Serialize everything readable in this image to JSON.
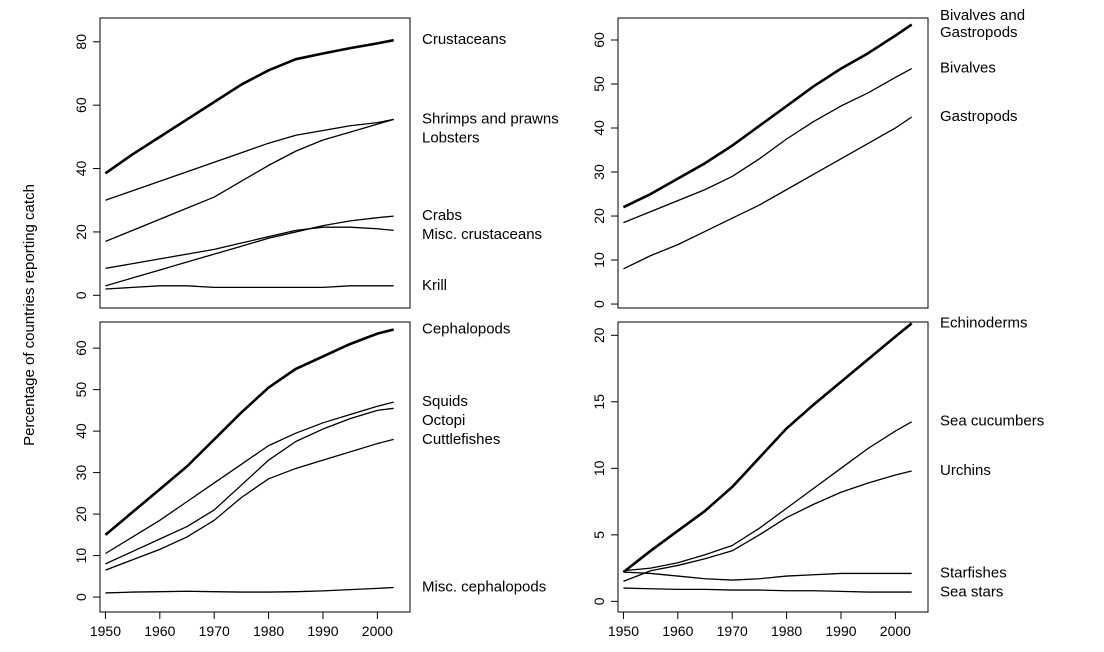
{
  "chart_data": [
    {
      "type": "line",
      "ylabel": "Percentage of countries reporting catch",
      "x": [
        1950,
        1955,
        1960,
        1965,
        1970,
        1975,
        1980,
        1985,
        1990,
        1995,
        2000,
        2003
      ],
      "xlim": [
        1949,
        2006
      ],
      "ylim": [
        -4,
        87.5
      ],
      "yticks": [
        0,
        20,
        40,
        60,
        80
      ],
      "series": [
        {
          "name": "Crustaceans",
          "color": "#000000",
          "line_width": 2.6,
          "values": [
            38.5,
            44.5,
            50,
            55.5,
            61,
            66.5,
            71,
            74.5,
            76.3,
            78,
            79.5,
            80.5
          ]
        },
        {
          "name": "Shrimps and prawns",
          "color": "#000000",
          "line_width": 1.3,
          "values": [
            30,
            33,
            36,
            39,
            42,
            45,
            48,
            50.5,
            52,
            53.5,
            54.5,
            55.5
          ]
        },
        {
          "name": "Lobsters",
          "color": "#000000",
          "line_width": 1.3,
          "values": [
            17,
            20.5,
            24,
            27.5,
            31,
            36,
            41,
            45.5,
            49,
            51.5,
            54,
            55.5
          ]
        },
        {
          "name": "Crabs",
          "color": "#000000",
          "line_width": 1.3,
          "values": [
            3,
            5.5,
            8,
            10.5,
            13,
            15.5,
            18,
            20,
            22,
            23.5,
            24.5,
            25
          ]
        },
        {
          "name": "Misc. crustaceans",
          "color": "#000000",
          "line_width": 1.3,
          "values": [
            8.5,
            10,
            11.5,
            13,
            14.5,
            16.5,
            18.5,
            20.5,
            21.5,
            21.5,
            21,
            20.5
          ]
        },
        {
          "name": "Krill",
          "color": "#000000",
          "line_width": 1.3,
          "values": [
            2,
            2.5,
            3,
            3,
            2.5,
            2.5,
            2.5,
            2.5,
            2.5,
            3,
            3,
            3
          ]
        }
      ]
    },
    {
      "type": "line",
      "x": [
        1950,
        1955,
        1960,
        1965,
        1970,
        1975,
        1980,
        1985,
        1990,
        1995,
        2000,
        2003
      ],
      "xlim": [
        1949,
        2006
      ],
      "ylim": [
        -0.9,
        65
      ],
      "yticks": [
        0,
        10,
        20,
        30,
        40,
        50,
        60
      ],
      "series": [
        {
          "name": "Bivalves and\nGastropods",
          "color": "#000000",
          "line_width": 2.6,
          "values": [
            22,
            25,
            28.5,
            32,
            36,
            40.5,
            45,
            49.5,
            53.5,
            57,
            61,
            63.5
          ]
        },
        {
          "name": "Bivalves",
          "color": "#000000",
          "line_width": 1.3,
          "values": [
            18.5,
            21,
            23.5,
            26,
            29,
            33,
            37.5,
            41.5,
            45,
            48,
            51.5,
            53.5
          ]
        },
        {
          "name": "Gastropods",
          "color": "#000000",
          "line_width": 1.3,
          "values": [
            8,
            11,
            13.5,
            16.5,
            19.5,
            22.5,
            26,
            29.5,
            33,
            36.5,
            40,
            42.5
          ]
        }
      ]
    },
    {
      "type": "line",
      "x": [
        1950,
        1955,
        1960,
        1965,
        1970,
        1975,
        1980,
        1985,
        1990,
        1995,
        2000,
        2003
      ],
      "xlim": [
        1949,
        2006
      ],
      "ylim": [
        -3.6,
        66.3
      ],
      "yticks": [
        0,
        10,
        20,
        30,
        40,
        50,
        60
      ],
      "xticks": [
        1950,
        1960,
        1970,
        1980,
        1990,
        2000
      ],
      "series": [
        {
          "name": "Cephalopods",
          "color": "#000000",
          "line_width": 2.6,
          "values": [
            15,
            20.5,
            26,
            31.5,
            38,
            44.5,
            50.5,
            55,
            58,
            61,
            63.5,
            64.5
          ]
        },
        {
          "name": "Squids",
          "color": "#000000",
          "line_width": 1.3,
          "values": [
            10.5,
            14.5,
            18.5,
            23,
            27.5,
            32,
            36.5,
            39.5,
            42,
            44,
            46,
            47
          ]
        },
        {
          "name": "Octopi",
          "color": "#000000",
          "line_width": 1.3,
          "values": [
            8,
            11,
            14,
            17,
            21,
            27,
            33,
            37.5,
            40.5,
            43,
            45,
            45.5
          ]
        },
        {
          "name": "Cuttlefishes",
          "color": "#000000",
          "line_width": 1.3,
          "values": [
            6.5,
            9,
            11.5,
            14.5,
            18.5,
            24,
            28.5,
            31,
            33,
            35,
            37,
            38
          ]
        },
        {
          "name": "Misc. cephalopods",
          "color": "#000000",
          "line_width": 1.3,
          "values": [
            1,
            1.2,
            1.3,
            1.4,
            1.3,
            1.2,
            1.2,
            1.3,
            1.5,
            1.8,
            2.1,
            2.3
          ]
        }
      ]
    },
    {
      "type": "line",
      "x": [
        1950,
        1955,
        1960,
        1965,
        1970,
        1975,
        1980,
        1985,
        1990,
        1995,
        2000,
        2003
      ],
      "xlim": [
        1949,
        2006
      ],
      "ylim": [
        -0.8,
        21
      ],
      "yticks": [
        0,
        5,
        10,
        15,
        20
      ],
      "xticks": [
        1950,
        1960,
        1970,
        1980,
        1990,
        2000
      ],
      "series": [
        {
          "name": "Echinoderms",
          "color": "#000000",
          "line_width": 2.6,
          "values": [
            2.2,
            3.8,
            5.3,
            6.8,
            8.6,
            10.8,
            13,
            14.8,
            16.5,
            18.2,
            19.9,
            20.9
          ]
        },
        {
          "name": "Sea cucumbers",
          "color": "#000000",
          "line_width": 1.3,
          "values": [
            2.3,
            2.5,
            2.9,
            3.5,
            4.2,
            5.5,
            7,
            8.5,
            10,
            11.5,
            12.8,
            13.5
          ]
        },
        {
          "name": "Urchins",
          "color": "#000000",
          "line_width": 1.3,
          "values": [
            1.5,
            2.3,
            2.7,
            3.2,
            3.8,
            5,
            6.3,
            7.3,
            8.2,
            8.9,
            9.5,
            9.8
          ]
        },
        {
          "name": "Starfishes",
          "color": "#000000",
          "line_width": 1.3,
          "values": [
            2.2,
            2.1,
            1.9,
            1.7,
            1.6,
            1.7,
            1.9,
            2,
            2.1,
            2.1,
            2.1,
            2.1
          ]
        },
        {
          "name": "Sea stars",
          "color": "#000000",
          "line_width": 1.3,
          "values": [
            1,
            0.95,
            0.9,
            0.9,
            0.85,
            0.85,
            0.8,
            0.8,
            0.75,
            0.7,
            0.7,
            0.7
          ]
        }
      ]
    }
  ]
}
